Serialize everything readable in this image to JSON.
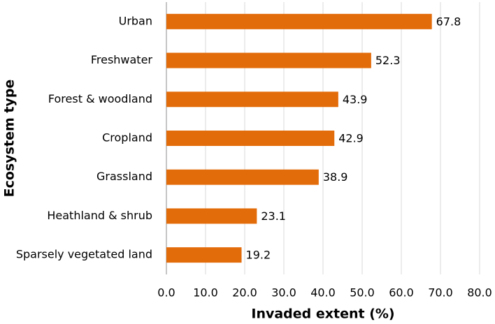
{
  "chart_data": {
    "type": "bar",
    "orientation": "horizontal",
    "x_label": "Invaded extent (%)",
    "y_label": "Ecosystem type",
    "categories": [
      "Urban",
      "Freshwater",
      "Forest & woodland",
      "Cropland",
      "Grassland",
      "Heathland & shrub",
      "Sparsely vegetated land"
    ],
    "values": [
      67.8,
      52.3,
      43.9,
      42.9,
      38.9,
      23.1,
      19.2
    ],
    "color": "#e36c0a",
    "xlim": [
      0,
      80
    ],
    "xticks": [
      {
        "value": 0,
        "label": "0.0"
      },
      {
        "value": 10,
        "label": "10.0"
      },
      {
        "value": 20,
        "label": "20.0"
      },
      {
        "value": 30,
        "label": "30.0"
      },
      {
        "value": 40,
        "label": "40.0"
      },
      {
        "value": 50,
        "label": "50.0"
      },
      {
        "value": 60,
        "label": "60.0"
      },
      {
        "value": 70,
        "label": "70.0"
      },
      {
        "value": 80,
        "label": "80.0"
      }
    ],
    "grid": true
  }
}
